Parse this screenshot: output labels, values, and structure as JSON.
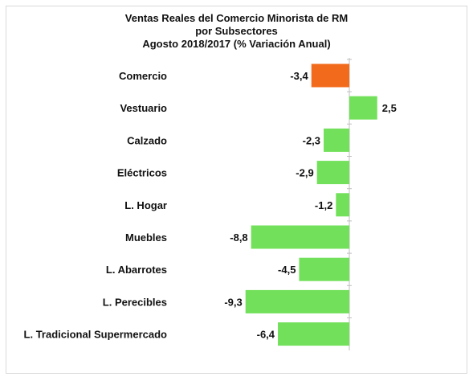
{
  "chart_data": {
    "type": "bar",
    "orientation": "horizontal",
    "title": [
      "Ventas Reales del Comercio Minorista de RM",
      "por Subsectores",
      "Agosto 2018/2017 (% Variación Anual)"
    ],
    "categories": [
      "Comercio",
      "Vestuario",
      "Calzado",
      "Eléctricos",
      "L. Hogar",
      "Muebles",
      "L. Abarrotes",
      "L. Perecibles",
      "L. Tradicional Supermercado"
    ],
    "values": [
      -3.4,
      2.5,
      -2.3,
      -2.9,
      -1.2,
      -8.8,
      -4.5,
      -9.3,
      -6.4
    ],
    "value_labels": [
      "-3,4",
      "2,5",
      "-2,3",
      "-2,9",
      "-1,2",
      "-8,8",
      "-4,5",
      "-9,3",
      "-6,4"
    ],
    "xlim": [
      -9.3,
      2.5
    ],
    "grid": false,
    "legend": "none",
    "colors": {
      "highlight": "#f26a1b",
      "default": "#72e05a",
      "highlight_category": "Comercio"
    }
  }
}
